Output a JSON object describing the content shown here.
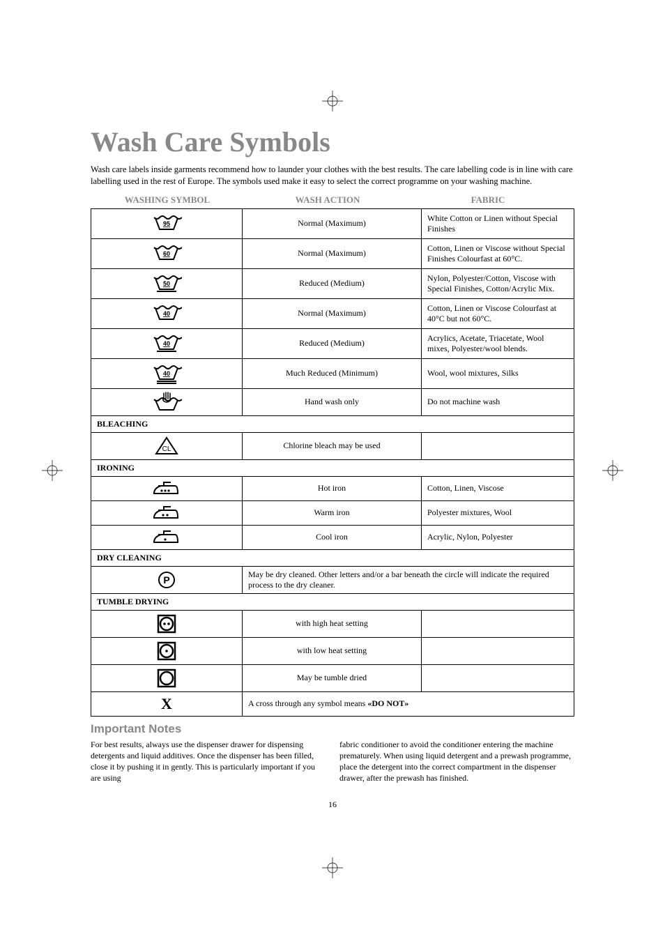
{
  "title": "Wash Care Symbols",
  "intro": "Wash care labels inside garments recommend how to launder your clothes with the best results. The care labelling code is in line with care labelling used in the rest of Europe. The symbols used make it easy to select the correct programme on your washing machine.",
  "headers": {
    "symbol": "WASHING SYMBOL",
    "action": "WASH ACTION",
    "fabric": "FABRIC"
  },
  "rows": [
    {
      "action": "Normal (Maximum)",
      "fabric": "White Cotton or Linen without Special Finishes"
    },
    {
      "action": "Normal (Maximum)",
      "fabric": "Cotton, Linen or Viscose without Special Finishes Colourfast at 60°C."
    },
    {
      "action": "Reduced (Medium)",
      "fabric": "Nylon, Polyester/Cotton, Viscose with Special Finishes, Cotton/Acrylic Mix."
    },
    {
      "action": "Normal (Maximum)",
      "fabric": "Cotton, Linen or Viscose Colourfast at 40°C but not 60°C."
    },
    {
      "action": "Reduced (Medium)",
      "fabric": "Acrylics, Acetate, Triacetate, Wool mixes, Polyester/wool blends."
    },
    {
      "action": "Much Reduced (Minimum)",
      "fabric": "Wool, wool mixtures, Silks"
    },
    {
      "action": "Hand wash only",
      "fabric": "Do not machine wash"
    }
  ],
  "sections": {
    "bleaching": "BLEACHING",
    "ironing": "IRONING",
    "dry": "DRY CLEANING",
    "tumble": "TUMBLE DRYING"
  },
  "bleach_row": {
    "action": "Chlorine bleach may be used",
    "fabric": ""
  },
  "iron_rows": [
    {
      "action": "Hot iron",
      "fabric": "Cotton, Linen, Viscose"
    },
    {
      "action": "Warm iron",
      "fabric": "Polyester mixtures, Wool"
    },
    {
      "action": "Cool iron",
      "fabric": "Acrylic, Nylon, Polyester"
    }
  ],
  "dry_row": "May be dry cleaned. Other letters and/or a bar beneath the circle will indicate the required process to the dry cleaner.",
  "tumble_rows": [
    {
      "action": "with high heat setting",
      "fabric": ""
    },
    {
      "action": "with low heat setting",
      "fabric": ""
    },
    {
      "action": "May be tumble dried",
      "fabric": ""
    }
  ],
  "cross_row_prefix": "A cross through any symbol means ",
  "cross_row_bold": "«DO NOT»",
  "notes_title": "Important Notes",
  "notes_left": "For best results, always use the dispenser drawer for dispensing detergents and liquid additives.\nOnce the dispenser has been filled, close it by pushing it in gently. This is particularly important if you are using",
  "notes_right": "fabric conditioner to avoid the conditioner entering the machine prematurely.\nWhen using liquid detergent and a prewash programme, place the detergent into the correct compartment in the dispenser drawer, after the prewash has finished.",
  "page_number": "16",
  "wash_temps": [
    "95",
    "60",
    "50",
    "40",
    "40",
    "40"
  ],
  "wash_bars": [
    0,
    0,
    1,
    0,
    1,
    2
  ],
  "colors": {
    "grey": "#888888",
    "black": "#000000",
    "bg": "#ffffff"
  }
}
